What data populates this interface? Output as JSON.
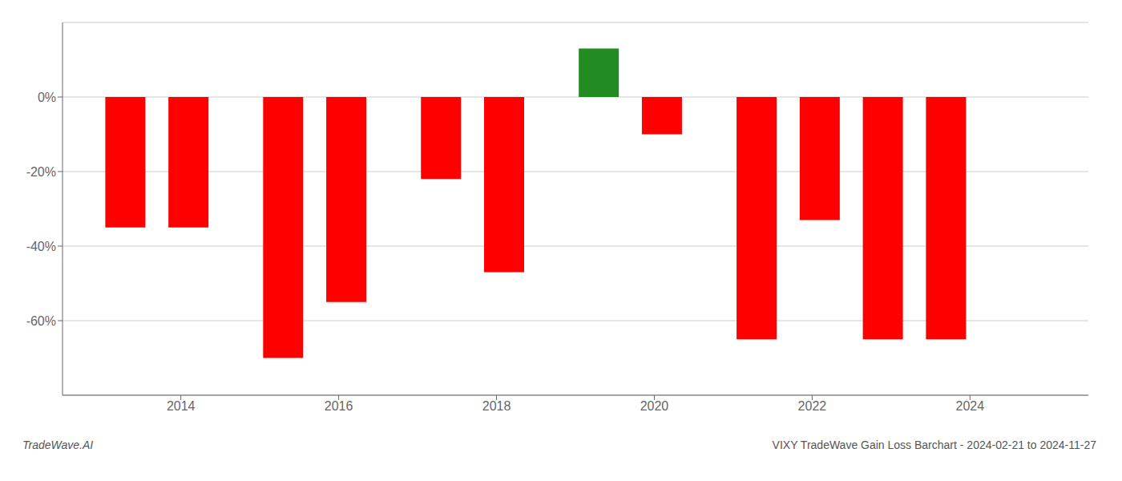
{
  "chart_data": {
    "type": "bar",
    "x": [
      2013.3,
      2014.1,
      2015.3,
      2016.1,
      2017.3,
      2018.1,
      2019.3,
      2020.1,
      2021.3,
      2022.1,
      2022.9,
      2023.7
    ],
    "values": [
      -35,
      -35,
      -70,
      -55,
      -22,
      -47,
      13,
      -10,
      -65,
      -33,
      -65,
      -65
    ],
    "colors": [
      "#FF0000",
      "#FF0000",
      "#FF0000",
      "#FF0000",
      "#FF0000",
      "#FF0000",
      "#228B22",
      "#FF0000",
      "#FF0000",
      "#FF0000",
      "#FF0000",
      "#FF0000"
    ],
    "xlim": [
      2012.5,
      2025.5
    ],
    "xticks": [
      2014,
      2016,
      2018,
      2020,
      2022,
      2024
    ],
    "ylim": [
      -80,
      20
    ],
    "yticks": [
      {
        "value": 0,
        "label": "0%"
      },
      {
        "value": -20,
        "label": "-20%"
      },
      {
        "value": -40,
        "label": "-40%"
      },
      {
        "value": -60,
        "label": "-60%"
      }
    ],
    "grid": true,
    "annotations": [
      "TradeWave.AI",
      "VIXY TradeWave Gain Loss Barchart - 2024-02-21 to 2024-11-27"
    ]
  }
}
